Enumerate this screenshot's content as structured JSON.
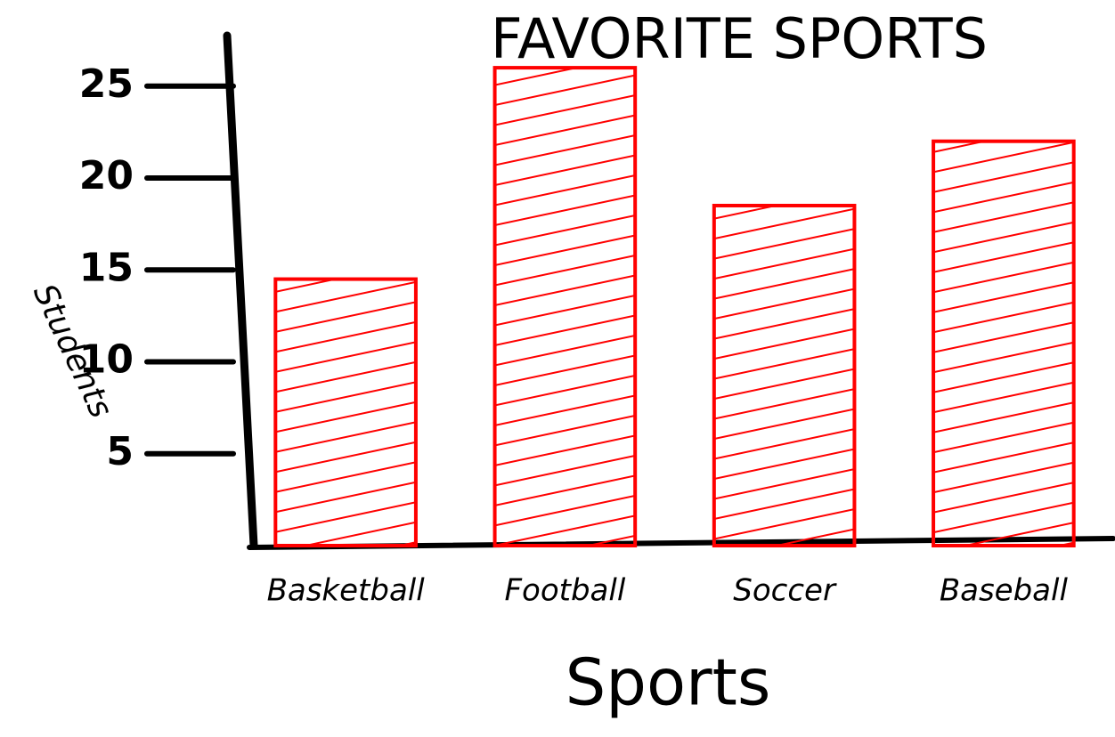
{
  "chart_data": {
    "type": "bar",
    "title": "FAVORITE SPORTS",
    "y_label": "Students",
    "x_label": "Sports",
    "categories": [
      "Basketball",
      "Football",
      "Soccer",
      "Baseball"
    ],
    "values": [
      14.5,
      26,
      18.5,
      22
    ],
    "color": "#ff0000",
    "ylim": [
      0,
      27
    ],
    "yticks": [
      5,
      10,
      15,
      20,
      25
    ],
    "grid": false
  }
}
